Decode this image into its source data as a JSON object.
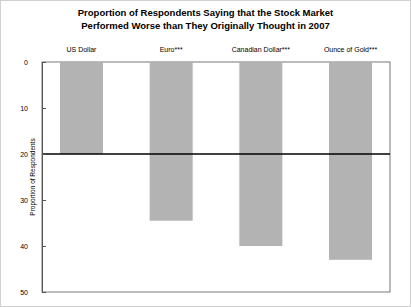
{
  "chart_data": {
    "type": "bar",
    "title": "Proportion of Respondents Saying that the Stock Market Performed Worse than They Originally Thought in 2007",
    "y_label": "Proportion of Respondents",
    "categories": [
      "US Dollar",
      "Euro***",
      "Canadian Dollar***",
      "Ounce of Gold***"
    ],
    "values": [
      20,
      34.5,
      40,
      43
    ],
    "color": "#b3b3b3",
    "reference_line": 20,
    "ylim": [
      0,
      50
    ],
    "yticks": [
      0,
      10,
      20,
      30,
      40,
      50
    ],
    "grid": false
  }
}
